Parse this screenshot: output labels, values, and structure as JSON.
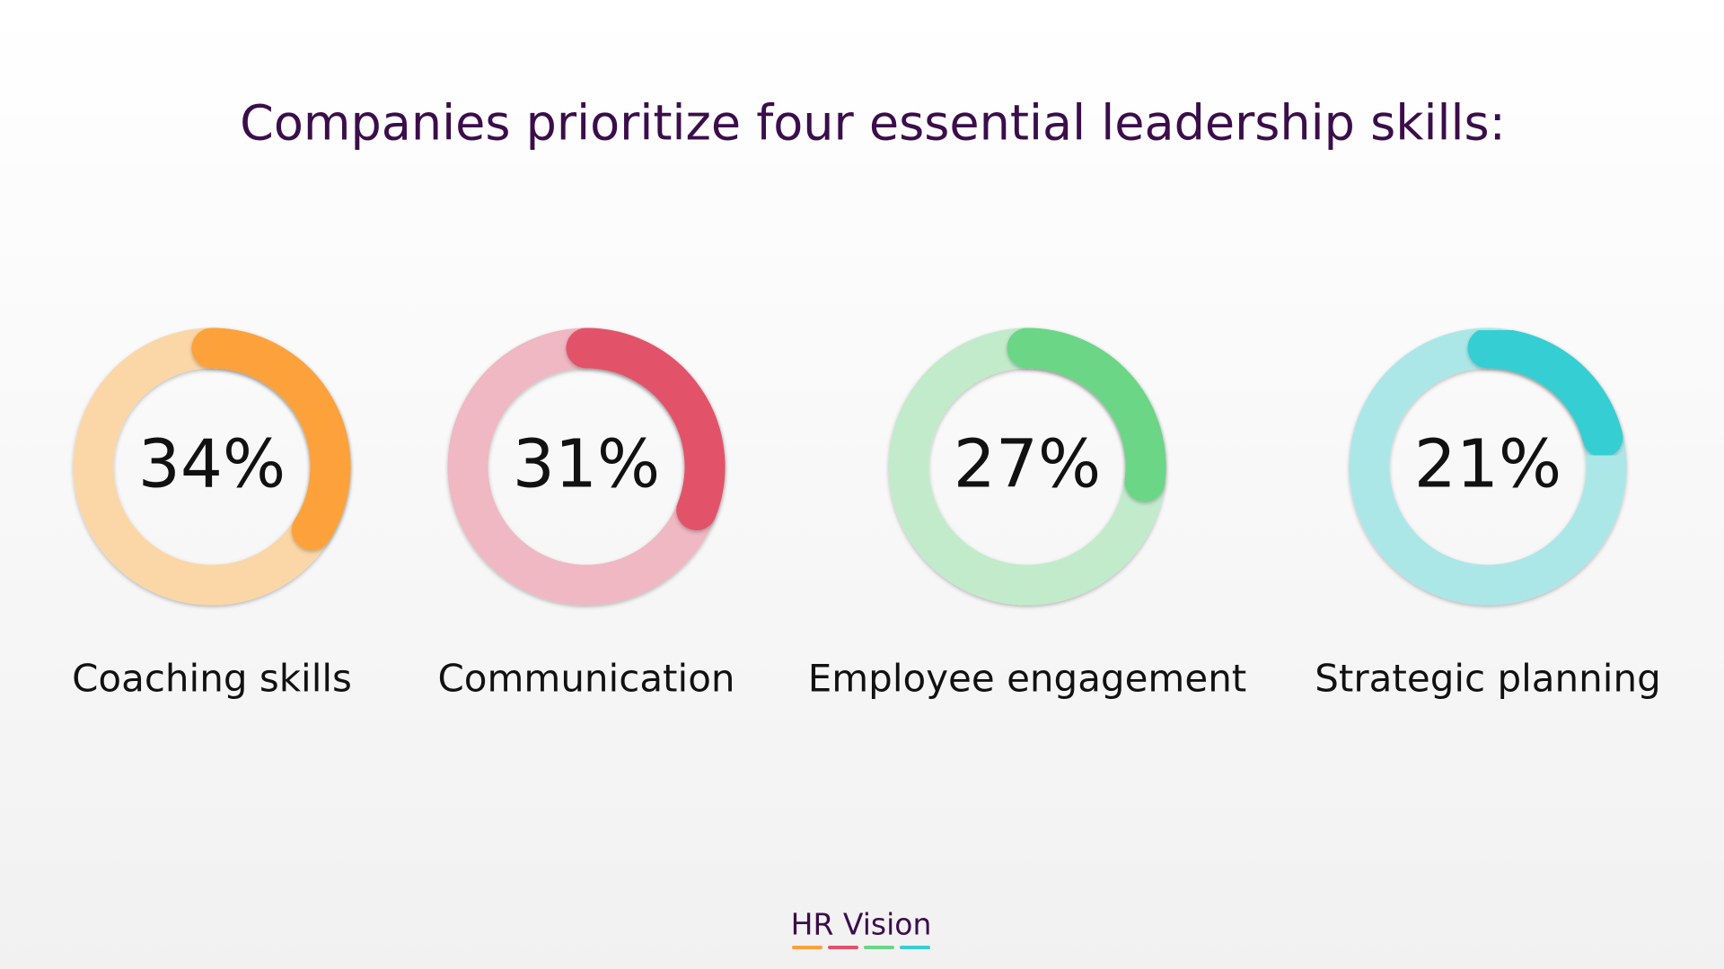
{
  "title": "Companies prioritize four essential leadership skills:",
  "chart_data": [
    {
      "type": "donut",
      "categories": [
        "Coaching skills"
      ],
      "values": [
        34
      ],
      "value_labels": [
        "34%"
      ],
      "color": "#fda13a",
      "track_color": "#fbd7a8"
    },
    {
      "type": "donut",
      "categories": [
        "Communication"
      ],
      "values": [
        31
      ],
      "value_labels": [
        "31%"
      ],
      "color": "#e2526b",
      "track_color": "#efb8c2"
    },
    {
      "type": "donut",
      "categories": [
        "Employee engagement"
      ],
      "values": [
        27
      ],
      "value_labels": [
        "27%"
      ],
      "color": "#6ad686",
      "track_color": "#c2ebcc"
    },
    {
      "type": "donut",
      "categories": [
        "Strategic planning"
      ],
      "values": [
        21
      ],
      "value_labels": [
        "21%"
      ],
      "color": "#36ced2",
      "track_color": "#ace7e8"
    }
  ],
  "footer": {
    "brand": "HR Vision"
  }
}
